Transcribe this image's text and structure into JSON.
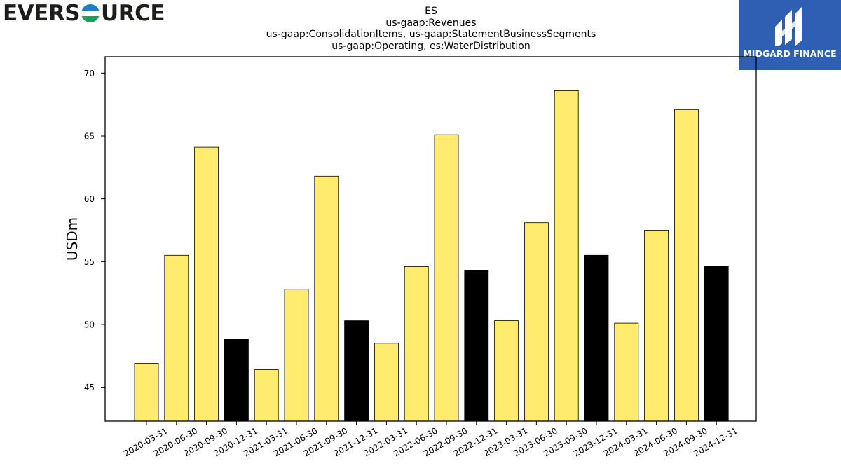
{
  "brand": {
    "left_text": "EVERS",
    "right_text": "URCE",
    "partner_name": "MIDGARD FINANCE"
  },
  "colors": {
    "bar_default": "#ffec6e",
    "bar_q4": "#000000",
    "bar_edge": "#000000",
    "logo_blue": "#2f5fb3"
  },
  "chart_data": {
    "type": "bar",
    "title_lines": [
      "ES",
      "us-gaap:Revenues",
      "us-gaap:ConsolidationItems, us-gaap:StatementBusinessSegments",
      "us-gaap:Operating, es:WaterDistribution"
    ],
    "xlabel": "",
    "ylabel": "USDm",
    "ylim": [
      42.3,
      71.3
    ],
    "yticks": [
      45,
      50,
      55,
      60,
      65,
      70
    ],
    "grid": false,
    "legend": "none",
    "categories": [
      "2020-03-31",
      "2020-06-30",
      "2020-09-30",
      "2020-12-31",
      "2021-03-31",
      "2021-06-30",
      "2021-09-30",
      "2021-12-31",
      "2022-03-31",
      "2022-06-30",
      "2022-09-30",
      "2022-12-31",
      "2023-03-31",
      "2023-06-30",
      "2023-09-30",
      "2023-12-31",
      "2024-03-31",
      "2024-06-30",
      "2024-09-30",
      "2024-12-31"
    ],
    "values": [
      46.9,
      55.5,
      64.1,
      48.8,
      46.4,
      52.8,
      61.8,
      50.3,
      48.5,
      54.6,
      65.1,
      54.3,
      50.3,
      58.1,
      68.6,
      55.5,
      50.1,
      57.5,
      67.1,
      54.6
    ],
    "highlight": [
      false,
      false,
      false,
      true,
      false,
      false,
      false,
      true,
      false,
      false,
      false,
      true,
      false,
      false,
      false,
      true,
      false,
      false,
      false,
      true
    ]
  }
}
